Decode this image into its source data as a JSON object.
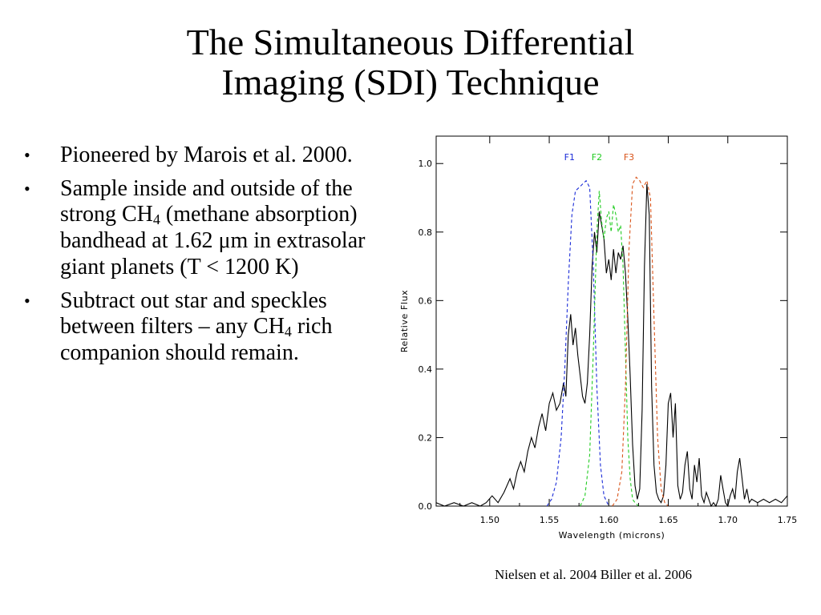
{
  "slide": {
    "title_line1": "The Simultaneous Differential",
    "title_line2": "Imaging (SDI) Technique",
    "bullets": [
      {
        "prefix": "Pioneered by Marois et al. 2000.",
        "sub": "",
        "suffix": ""
      },
      {
        "prefix": "Sample inside and outside of the strong CH",
        "sub": "4",
        "suffix": " (methane absorption) bandhead at 1.62 μm in extrasolar giant planets (T < 1200 K)"
      },
      {
        "prefix": "Subtract out star and speckles between filters – any CH",
        "sub": "4",
        "suffix": " rich companion should remain."
      }
    ],
    "bullet_symbol": "•",
    "citation": "Nielsen et al. 2004 Biller et al. 2006"
  },
  "chart_data": {
    "type": "line",
    "xlabel": "Wavelength (microns)",
    "ylabel": "Relative Flux",
    "xlim": [
      1.455,
      1.75
    ],
    "ylim": [
      0.0,
      1.08
    ],
    "xticks": [
      1.5,
      1.55,
      1.6,
      1.65,
      1.7,
      1.75
    ],
    "xtick_labels": [
      "1.50",
      "1.55",
      "1.60",
      "1.65",
      "1.70",
      "1.75"
    ],
    "yticks": [
      0.0,
      0.2,
      0.4,
      0.6,
      0.8,
      1.0
    ],
    "ytick_labels": [
      "0.0",
      "0.2",
      "0.4",
      "0.6",
      "0.8",
      "1.0"
    ],
    "grid": false,
    "legend_placement": "top-center",
    "series": [
      {
        "style": "solid",
        "color": "#000000",
        "x": [
          1.455,
          1.462,
          1.47,
          1.478,
          1.485,
          1.492,
          1.497,
          1.502,
          1.507,
          1.512,
          1.517,
          1.52,
          1.523,
          1.526,
          1.529,
          1.532,
          1.535,
          1.538,
          1.541,
          1.544,
          1.547,
          1.55,
          1.553,
          1.556,
          1.559,
          1.562,
          1.564,
          1.566,
          1.568,
          1.57,
          1.572,
          1.574,
          1.576,
          1.578,
          1.58,
          1.582,
          1.584,
          1.586,
          1.588,
          1.59,
          1.592,
          1.594,
          1.596,
          1.598,
          1.6,
          1.602,
          1.604,
          1.606,
          1.608,
          1.61,
          1.612,
          1.614,
          1.616,
          1.618,
          1.62,
          1.622,
          1.624,
          1.626,
          1.628,
          1.63,
          1.632,
          1.634,
          1.636,
          1.638,
          1.64,
          1.642,
          1.644,
          1.646,
          1.648,
          1.65,
          1.652,
          1.654,
          1.656,
          1.658,
          1.66,
          1.662,
          1.664,
          1.666,
          1.668,
          1.67,
          1.672,
          1.674,
          1.676,
          1.678,
          1.68,
          1.682,
          1.684,
          1.686,
          1.688,
          1.69,
          1.692,
          1.694,
          1.696,
          1.698,
          1.7,
          1.702,
          1.704,
          1.706,
          1.708,
          1.71,
          1.712,
          1.714,
          1.716,
          1.718,
          1.72,
          1.725,
          1.73,
          1.735,
          1.74,
          1.745,
          1.75
        ],
        "y": [
          0.01,
          0.0,
          0.01,
          0.0,
          0.01,
          0.0,
          0.01,
          0.03,
          0.01,
          0.04,
          0.08,
          0.05,
          0.1,
          0.13,
          0.1,
          0.16,
          0.2,
          0.17,
          0.23,
          0.27,
          0.22,
          0.3,
          0.33,
          0.28,
          0.3,
          0.36,
          0.32,
          0.5,
          0.56,
          0.47,
          0.52,
          0.44,
          0.38,
          0.32,
          0.3,
          0.36,
          0.5,
          0.7,
          0.8,
          0.74,
          0.86,
          0.82,
          0.78,
          0.68,
          0.72,
          0.66,
          0.75,
          0.68,
          0.74,
          0.72,
          0.76,
          0.68,
          0.55,
          0.38,
          0.18,
          0.06,
          0.02,
          0.05,
          0.28,
          0.7,
          0.94,
          0.85,
          0.35,
          0.12,
          0.04,
          0.02,
          0.01,
          0.03,
          0.12,
          0.3,
          0.33,
          0.2,
          0.3,
          0.06,
          0.02,
          0.04,
          0.12,
          0.16,
          0.05,
          0.02,
          0.12,
          0.07,
          0.14,
          0.03,
          0.01,
          0.04,
          0.02,
          0.0,
          0.01,
          0.0,
          0.02,
          0.09,
          0.05,
          0.01,
          0.0,
          0.03,
          0.05,
          0.02,
          0.1,
          0.14,
          0.08,
          0.02,
          0.05,
          0.01,
          0.02,
          0.01,
          0.02,
          0.01,
          0.02,
          0.01,
          0.03
        ]
      },
      {
        "name": "F1",
        "style": "dashed",
        "color": "#1a2bd8",
        "x": [
          1.548,
          1.552,
          1.556,
          1.56,
          1.563,
          1.566,
          1.569,
          1.572,
          1.575,
          1.578,
          1.581,
          1.584,
          1.587,
          1.59,
          1.593,
          1.596,
          1.6
        ],
        "y": [
          0.0,
          0.02,
          0.07,
          0.2,
          0.4,
          0.65,
          0.85,
          0.92,
          0.93,
          0.94,
          0.95,
          0.93,
          0.7,
          0.35,
          0.12,
          0.03,
          0.0
        ]
      },
      {
        "name": "F2",
        "style": "dashed",
        "color": "#22cc22",
        "x": [
          1.576,
          1.58,
          1.584,
          1.587,
          1.59,
          1.592,
          1.594,
          1.596,
          1.598,
          1.6,
          1.602,
          1.604,
          1.606,
          1.608,
          1.61,
          1.612,
          1.614,
          1.616,
          1.618,
          1.62,
          1.622,
          1.625
        ],
        "y": [
          0.0,
          0.03,
          0.15,
          0.45,
          0.8,
          0.92,
          0.83,
          0.78,
          0.84,
          0.86,
          0.8,
          0.88,
          0.85,
          0.8,
          0.82,
          0.7,
          0.45,
          0.2,
          0.08,
          0.02,
          0.01,
          0.0
        ]
      },
      {
        "name": "F3",
        "style": "dashed",
        "color": "#d9541a",
        "x": [
          1.603,
          1.607,
          1.611,
          1.614,
          1.617,
          1.62,
          1.623,
          1.626,
          1.629,
          1.632,
          1.635,
          1.638,
          1.641,
          1.644,
          1.647,
          1.65
        ],
        "y": [
          0.0,
          0.02,
          0.1,
          0.35,
          0.75,
          0.94,
          0.96,
          0.95,
          0.93,
          0.95,
          0.9,
          0.55,
          0.2,
          0.05,
          0.01,
          0.0
        ]
      }
    ]
  }
}
